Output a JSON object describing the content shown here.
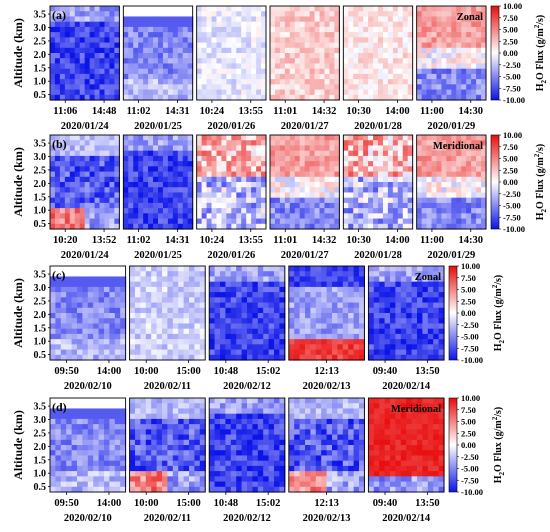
{
  "chart_data": [
    {
      "type": "heatmap",
      "panel": "(a)",
      "component": "Zonal",
      "ylabel": "Altitude (km)",
      "ylim": [
        0.3,
        3.8
      ],
      "yticks": [
        "0.5",
        "1.0",
        "1.5",
        "2.0",
        "2.5",
        "3.0",
        "3.5"
      ],
      "colorbar_label": "H2O Flux (g/m²/s)",
      "clim": [
        -10,
        10
      ],
      "cbar_ticks": [
        "10.00",
        "7.50",
        "5.00",
        "2.50",
        "0.00",
        "-2.50",
        "-5.00",
        "-7.50",
        "-10.00"
      ],
      "colormap": [
        "#0a14e6",
        "#ffffff",
        "#f01414"
      ],
      "days": [
        {
          "date": "2020/01/24",
          "times": [
            "11:06",
            "14:48"
          ],
          "dominant": -6,
          "pattern": "dark-blue"
        },
        {
          "date": "2020/01/25",
          "times": [
            "11:02",
            "14:31"
          ],
          "dominant": -4,
          "pattern": "blue-top"
        },
        {
          "date": "2020/01/26",
          "times": [
            "10:24",
            "13:55"
          ],
          "dominant": -1,
          "pattern": "light"
        },
        {
          "date": "2020/01/27",
          "times": [
            "11:01",
            "14:32"
          ],
          "dominant": 2,
          "pattern": "light-red"
        },
        {
          "date": "2020/01/28",
          "times": [
            "10:30",
            "14:00"
          ],
          "dominant": 1,
          "pattern": "light"
        },
        {
          "date": "2020/01/29",
          "times": [
            "11:00",
            "14:30"
          ],
          "dominant": 3,
          "pattern": "red-top-blue-bottom"
        }
      ]
    },
    {
      "type": "heatmap",
      "panel": "(b)",
      "component": "Meridional",
      "ylabel": "Altitude (km)",
      "ylim": [
        0.3,
        3.8
      ],
      "yticks": [
        "0.5",
        "1.0",
        "1.5",
        "2.0",
        "2.5",
        "3.0",
        "3.5"
      ],
      "colorbar_label": "H2O Flux (g/m²/s)",
      "clim": [
        -10,
        10
      ],
      "cbar_ticks": [
        "10.00",
        "7.50",
        "5.00",
        "2.50",
        "0.00",
        "-2.50",
        "-5.00",
        "-7.50",
        "-10.00"
      ],
      "colormap": [
        "#0a14e6",
        "#ffffff",
        "#f01414"
      ],
      "days": [
        {
          "date": "2020/01/24",
          "times": [
            "10:20",
            "13:52"
          ],
          "dominant": -7,
          "pattern": "blue-bottom-red"
        },
        {
          "date": "2020/01/25",
          "times": [
            "11:02",
            "14:31"
          ],
          "dominant": -8,
          "pattern": "dark-blue"
        },
        {
          "date": "2020/01/26",
          "times": [
            "10:24",
            "13:55"
          ],
          "dominant": 0,
          "pattern": "mixed"
        },
        {
          "date": "2020/01/27",
          "times": [
            "11:01",
            "14:32"
          ],
          "dominant": 4,
          "pattern": "red-top-blue-bottom"
        },
        {
          "date": "2020/01/28",
          "times": [
            "10:30",
            "14:00"
          ],
          "dominant": 1,
          "pattern": "mixed"
        },
        {
          "date": "2020/01/29",
          "times": [
            "11:00",
            "14:30"
          ],
          "dominant": 3,
          "pattern": "red-top-blue-bottom"
        }
      ]
    },
    {
      "type": "heatmap",
      "panel": "(c)",
      "component": "Zonal",
      "ylabel": "Altitude (km)",
      "ylim": [
        0.3,
        3.8
      ],
      "yticks": [
        "0.5",
        "1.0",
        "1.5",
        "2.0",
        "2.5",
        "3.0",
        "3.5"
      ],
      "colorbar_label": "H2O Flux (g/m²/s)",
      "clim": [
        -10,
        10
      ],
      "cbar_ticks": [
        "10.00",
        "7.50",
        "5.00",
        "2.50",
        "0.00",
        "-2.50",
        "-5.00",
        "-7.50",
        "-10.00"
      ],
      "colormap": [
        "#0a14e6",
        "#ffffff",
        "#f01414"
      ],
      "days": [
        {
          "date": "2020/02/10",
          "times": [
            "09:50",
            "14:00"
          ],
          "dominant": -6,
          "pattern": "blue-top"
        },
        {
          "date": "2020/02/11",
          "times": [
            "10:00",
            "15:00"
          ],
          "dominant": -2,
          "pattern": "light"
        },
        {
          "date": "2020/02/12",
          "times": [
            "10:48",
            "15:02"
          ],
          "dominant": -6,
          "pattern": "dark-blue"
        },
        {
          "date": "2020/02/13",
          "times": [
            "12:13"
          ],
          "dominant": -1,
          "pattern": "blue-top-red-bottom"
        },
        {
          "date": "2020/02/14",
          "times": [
            "09:40",
            "13:50"
          ],
          "dominant": -6,
          "pattern": "dark-blue"
        }
      ]
    },
    {
      "type": "heatmap",
      "panel": "(d)",
      "component": "Meridional",
      "ylabel": "Altitude (km)",
      "ylim": [
        0.3,
        3.8
      ],
      "yticks": [
        "0.5",
        "1.0",
        "1.5",
        "2.0",
        "2.5",
        "3.0",
        "3.5"
      ],
      "colorbar_label": "H2O Flux (g/m²/s)",
      "clim": [
        -10,
        10
      ],
      "cbar_ticks": [
        "10.00",
        "7.50",
        "5.00",
        "2.50",
        "0.00",
        "-2.50",
        "-5.00",
        "-7.50",
        "-10.00"
      ],
      "colormap": [
        "#0a14e6",
        "#ffffff",
        "#f01414"
      ],
      "days": [
        {
          "date": "2020/02/10",
          "times": [
            "09:50",
            "14:00"
          ],
          "dominant": -4,
          "pattern": "blue-top"
        },
        {
          "date": "2020/02/11",
          "times": [
            "10:00",
            "15:00"
          ],
          "dominant": -5,
          "pattern": "blue-bottom-red"
        },
        {
          "date": "2020/02/12",
          "times": [
            "10:48",
            "15:02"
          ],
          "dominant": -7,
          "pattern": "dark-blue"
        },
        {
          "date": "2020/02/13",
          "times": [
            "12:13"
          ],
          "dominant": -3,
          "pattern": "blue-bottom-red"
        },
        {
          "date": "2020/02/14",
          "times": [
            "09:40",
            "13:50"
          ],
          "dominant": 9,
          "pattern": "red-full"
        }
      ]
    }
  ]
}
